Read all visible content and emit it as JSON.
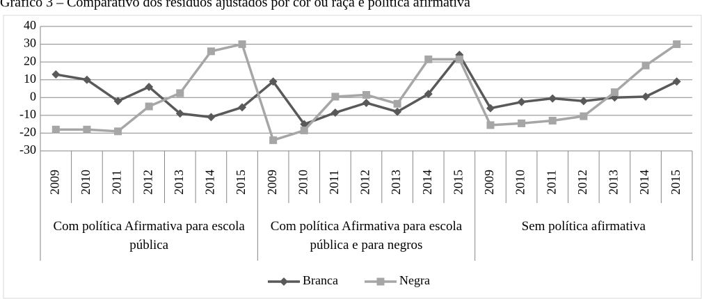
{
  "chart_data": {
    "type": "line",
    "title": "Gráfico 3 – Comparativo dos resíduos ajustados por cor ou raça e política afirmativa",
    "groups": [
      {
        "name": "Com política Afirmativa para escola pública",
        "categories": [
          "2009",
          "2010",
          "2011",
          "2012",
          "2013",
          "2014",
          "2015"
        ]
      },
      {
        "name": "Com política Afirmativa para escola pública e para negros",
        "categories": [
          "2009",
          "2010",
          "2011",
          "2012",
          "2013",
          "2014",
          "2015"
        ]
      },
      {
        "name": "Sem política afirmativa",
        "categories": [
          "2009",
          "2010",
          "2011",
          "2012",
          "2013",
          "2014",
          "2015"
        ]
      }
    ],
    "series": [
      {
        "name": "Branca",
        "color": "#595959",
        "marker": "diamond",
        "values": [
          13,
          10,
          -2,
          6,
          -9,
          -11,
          -5.5,
          9,
          -15,
          -8.5,
          -3,
          -8,
          2,
          24,
          -6,
          -2.5,
          -0.5,
          -2,
          0,
          0.5,
          9
        ]
      },
      {
        "name": "Negra",
        "color": "#a6a6a6",
        "marker": "square",
        "values": [
          -18,
          -18,
          -19,
          -5,
          2.5,
          26,
          30,
          -24,
          -18.5,
          0.5,
          1.5,
          -3.5,
          21.5,
          21.5,
          -15.5,
          -14.5,
          -13,
          -10.5,
          3,
          18,
          30
        ]
      }
    ],
    "ylim": [
      -30,
      40
    ],
    "yticks": [
      -30,
      -20,
      -10,
      0,
      10,
      20,
      30,
      40
    ],
    "grid": true,
    "legend": "bottom"
  }
}
